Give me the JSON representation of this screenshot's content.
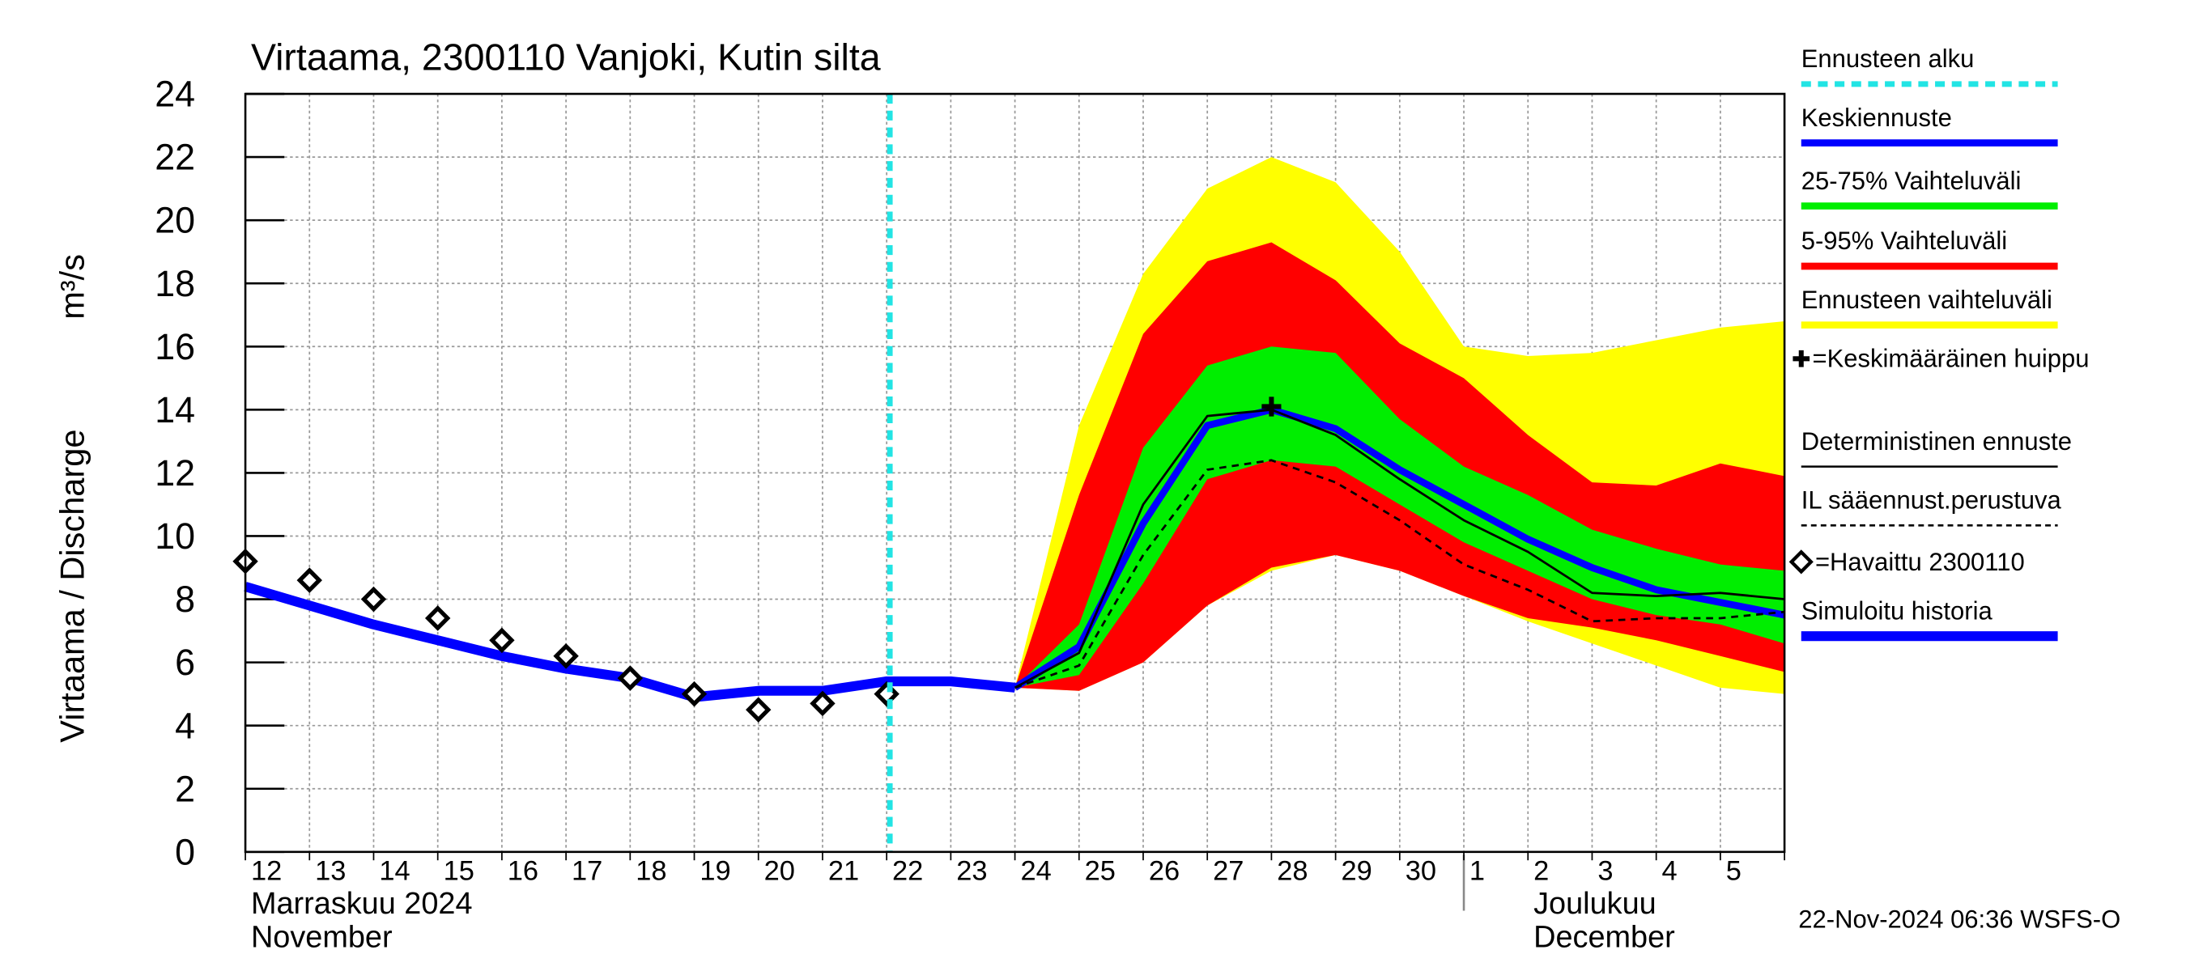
{
  "chart_data": {
    "type": "line",
    "title": "Virtaama, 2300110 Vanjoki, Kutin silta",
    "y_label": "Virtaama / Discharge",
    "y_unit": "m³/s",
    "month_labels": [
      "Marraskuu 2024",
      "November",
      "Joulukuu",
      "December"
    ],
    "timestamp": "22-Nov-2024 06:36 WSFS-O",
    "categories": [
      "12",
      "13",
      "14",
      "15",
      "16",
      "17",
      "18",
      "19",
      "20",
      "21",
      "22",
      "23",
      "24",
      "25",
      "26",
      "27",
      "28",
      "29",
      "30",
      "1",
      "2",
      "3",
      "4",
      "5",
      null
    ],
    "ylim": [
      0,
      24
    ],
    "yticks": [
      0,
      2,
      4,
      6,
      8,
      10,
      12,
      14,
      16,
      18,
      20,
      22,
      24
    ],
    "grid": true,
    "series": [
      {
        "name": "Ennusteen alku",
        "kind": "vline",
        "color": "#22e4e4",
        "x": 10.05
      },
      {
        "name": "Keskiennuste",
        "kind": "line",
        "color": "#0000ff",
        "values": [
          null,
          null,
          null,
          null,
          null,
          null,
          null,
          null,
          null,
          null,
          null,
          null,
          5.2,
          6.5,
          10.4,
          13.5,
          14.0,
          13.4,
          12.1,
          11.0,
          9.9,
          9.0,
          8.3,
          7.9,
          7.5
        ]
      },
      {
        "name": "25-75% Vaihteluväli",
        "kind": "band",
        "color": "#00ee00",
        "lower": [
          null,
          null,
          null,
          null,
          null,
          null,
          null,
          null,
          null,
          null,
          null,
          null,
          5.2,
          5.6,
          8.5,
          11.8,
          12.4,
          12.2,
          11.0,
          9.8,
          8.9,
          8.0,
          7.5,
          7.2,
          6.6
        ],
        "upper": [
          null,
          null,
          null,
          null,
          null,
          null,
          null,
          null,
          null,
          null,
          null,
          null,
          5.2,
          7.2,
          12.8,
          15.4,
          16.0,
          15.8,
          13.7,
          12.2,
          11.3,
          10.2,
          9.6,
          9.1,
          8.9
        ]
      },
      {
        "name": "5-95% Vaihteluväli",
        "kind": "band",
        "color": "#ff0000",
        "lower": [
          null,
          null,
          null,
          null,
          null,
          null,
          null,
          null,
          null,
          null,
          null,
          null,
          5.2,
          5.1,
          6.0,
          7.8,
          9.0,
          9.4,
          8.9,
          8.1,
          7.4,
          7.1,
          6.7,
          6.2,
          5.7
        ],
        "upper": [
          null,
          null,
          null,
          null,
          null,
          null,
          null,
          null,
          null,
          null,
          null,
          null,
          5.2,
          11.3,
          16.4,
          18.7,
          19.3,
          18.1,
          16.1,
          15.0,
          13.2,
          11.7,
          11.6,
          12.3,
          11.9
        ]
      },
      {
        "name": "Ennusteen vaihteluväli",
        "kind": "band",
        "color": "#ffff00",
        "lower": [
          null,
          null,
          null,
          null,
          null,
          null,
          null,
          null,
          null,
          null,
          null,
          null,
          5.2,
          5.1,
          6.0,
          7.8,
          8.9,
          9.4,
          8.9,
          8.1,
          7.3,
          6.6,
          5.9,
          5.2,
          5.0
        ],
        "upper": [
          null,
          null,
          null,
          null,
          null,
          null,
          null,
          null,
          null,
          null,
          null,
          null,
          5.2,
          13.5,
          18.3,
          21.0,
          22.0,
          21.2,
          19.0,
          16.0,
          15.7,
          15.8,
          16.2,
          16.6,
          16.8
        ]
      },
      {
        "name": "=Keskimääräinen huippu",
        "kind": "peak",
        "color": "#000000",
        "x": 16,
        "value": 14.1
      },
      {
        "name": "Deterministinen ennuste",
        "kind": "line",
        "color": "#000000",
        "values": [
          null,
          null,
          null,
          null,
          null,
          null,
          null,
          null,
          null,
          null,
          null,
          null,
          5.2,
          6.3,
          11.0,
          13.8,
          14.0,
          13.2,
          11.8,
          10.5,
          9.5,
          8.2,
          8.1,
          8.2,
          8.0
        ]
      },
      {
        "name": "IL sääennust.perustuva",
        "kind": "dashed",
        "color": "#000000",
        "values": [
          null,
          null,
          null,
          null,
          null,
          null,
          null,
          null,
          null,
          null,
          null,
          null,
          5.2,
          5.9,
          9.4,
          12.1,
          12.4,
          11.7,
          10.5,
          9.1,
          8.3,
          7.3,
          7.4,
          7.4,
          7.6
        ]
      },
      {
        "name": "=Havaittu 2300110",
        "kind": "points",
        "color": "#000000",
        "values": [
          9.2,
          8.6,
          8.0,
          7.4,
          6.7,
          6.2,
          5.5,
          5.0,
          4.5,
          4.7,
          5.0,
          null,
          null,
          null,
          null,
          null,
          null,
          null,
          null,
          null,
          null,
          null,
          null,
          null,
          null
        ]
      },
      {
        "name": "Simuloitu historia",
        "kind": "history",
        "color": "#0000ff",
        "values": [
          8.4,
          7.8,
          7.2,
          6.7,
          6.2,
          5.8,
          5.5,
          4.9,
          5.1,
          5.1,
          5.4,
          5.4,
          5.2,
          null,
          null,
          null,
          null,
          null,
          null,
          null,
          null,
          null,
          null,
          null,
          null
        ]
      }
    ]
  }
}
